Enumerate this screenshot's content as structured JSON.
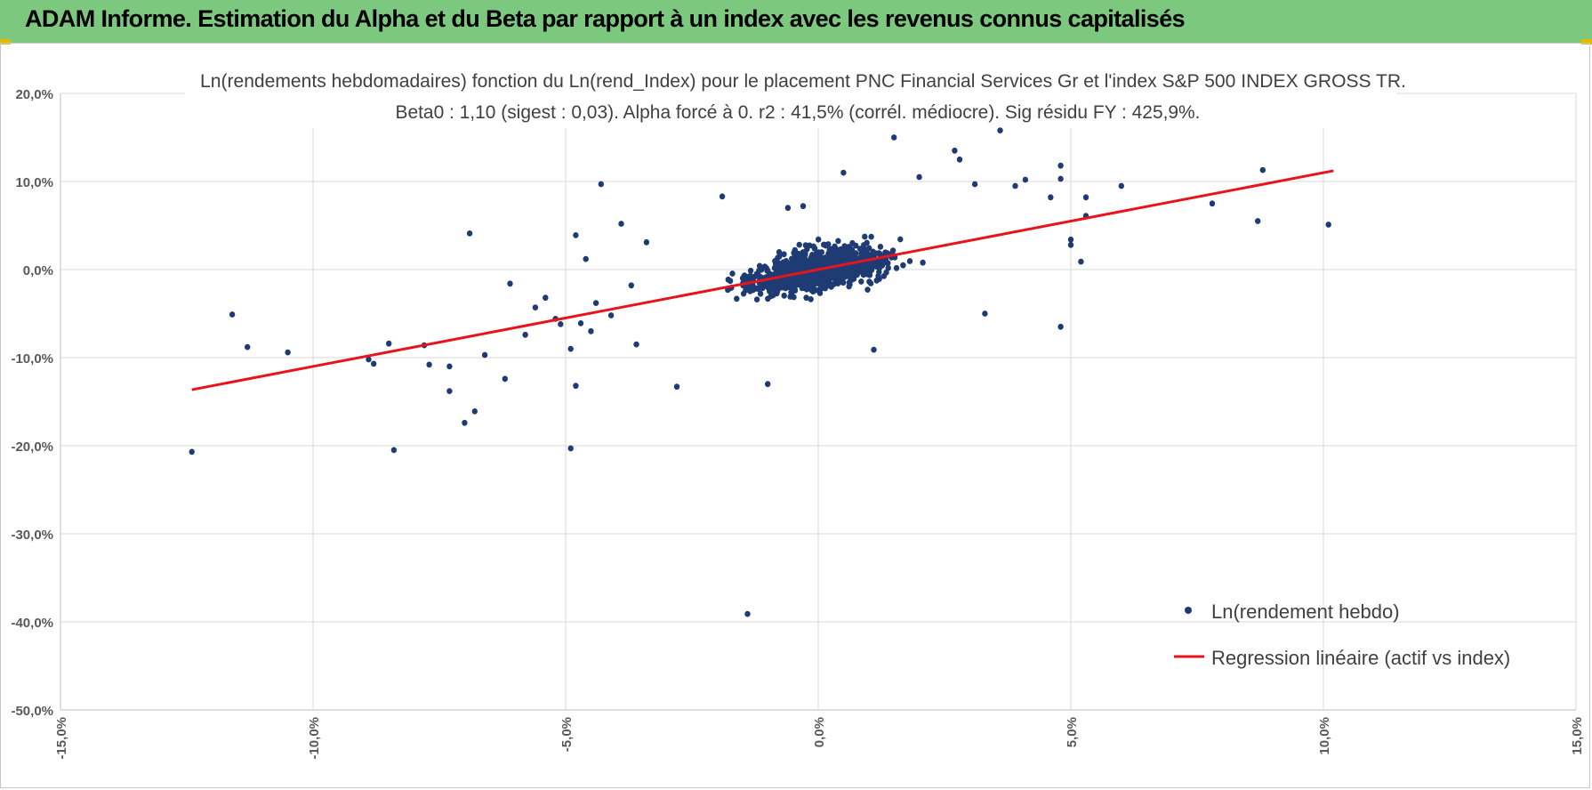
{
  "header": {
    "title": "ADAM Informe. Estimation du Alpha et du Beta par rapport à un index avec les revenus connus capitalisés",
    "background_color": "#7dc87f"
  },
  "chart_data": {
    "type": "scatter",
    "title": "Ln(rendements hebdomadaires) fonction du Ln(rend_Index) pour le placement PNC Financial Services Gr et l'index S&P 500 INDEX GROSS TR.",
    "subtitle": "Beta0 : 1,10 (sigest : 0,03). Alpha forcé à 0. r2 : 41,5% (corrél. médiocre). Sig résidu FY : 425,9%.",
    "xlabel": "",
    "ylabel": "",
    "xlim": [
      -0.15,
      0.15
    ],
    "ylim": [
      -0.5,
      0.2
    ],
    "x_ticks": [
      -0.15,
      -0.1,
      -0.05,
      0.0,
      0.05,
      0.1,
      0.15
    ],
    "x_tick_labels": [
      "-15,0%",
      "-10,0%",
      "-5,0%",
      "0,0%",
      "5,0%",
      "10,0%",
      "15,0%"
    ],
    "y_ticks": [
      0.2,
      0.1,
      0.0,
      -0.1,
      -0.2,
      -0.3,
      -0.4,
      -0.5
    ],
    "y_tick_labels": [
      "20,0%",
      "10,0%",
      "0,0%",
      "-10,0%",
      "-20,0%",
      "-30,0%",
      "-40,0%",
      "-50,0%"
    ],
    "grid": true,
    "legend_position": "bottom-right",
    "series": [
      {
        "name": "Ln(rendement hebdo)",
        "kind": "scatter",
        "color": "#1f3b73",
        "points": [
          [
            -0.124,
            -0.207
          ],
          [
            -0.116,
            -0.051
          ],
          [
            -0.113,
            -0.088
          ],
          [
            -0.105,
            -0.094
          ],
          [
            -0.089,
            -0.102
          ],
          [
            -0.088,
            -0.107
          ],
          [
            -0.085,
            -0.084
          ],
          [
            -0.084,
            -0.205
          ],
          [
            -0.078,
            -0.086
          ],
          [
            -0.077,
            -0.108
          ],
          [
            -0.073,
            -0.11
          ],
          [
            -0.073,
            -0.138
          ],
          [
            -0.07,
            -0.174
          ],
          [
            -0.069,
            0.041
          ],
          [
            -0.068,
            -0.161
          ],
          [
            -0.066,
            -0.097
          ],
          [
            -0.062,
            -0.124
          ],
          [
            -0.061,
            -0.016
          ],
          [
            -0.058,
            -0.074
          ],
          [
            -0.056,
            -0.043
          ],
          [
            -0.054,
            -0.032
          ],
          [
            -0.052,
            -0.056
          ],
          [
            -0.051,
            -0.062
          ],
          [
            -0.049,
            -0.09
          ],
          [
            -0.049,
            -0.203
          ],
          [
            -0.048,
            -0.132
          ],
          [
            -0.048,
            0.039
          ],
          [
            -0.047,
            -0.061
          ],
          [
            -0.046,
            0.012
          ],
          [
            -0.045,
            -0.07
          ],
          [
            -0.044,
            -0.038
          ],
          [
            -0.043,
            0.097
          ],
          [
            -0.041,
            -0.052
          ],
          [
            -0.039,
            0.052
          ],
          [
            -0.037,
            -0.018
          ],
          [
            -0.036,
            -0.085
          ],
          [
            -0.034,
            0.031
          ],
          [
            -0.028,
            -0.133
          ],
          [
            -0.019,
            0.083
          ],
          [
            -0.01,
            -0.13
          ],
          [
            -0.014,
            -0.391
          ],
          [
            -0.006,
            0.07
          ],
          [
            -0.003,
            0.072
          ],
          [
            0.005,
            0.11
          ],
          [
            0.011,
            -0.091
          ],
          [
            0.015,
            0.15
          ],
          [
            0.02,
            0.105
          ],
          [
            0.027,
            0.135
          ],
          [
            0.028,
            0.125
          ],
          [
            0.036,
            0.158
          ],
          [
            0.031,
            0.097
          ],
          [
            0.033,
            -0.05
          ],
          [
            0.039,
            0.095
          ],
          [
            0.041,
            0.102
          ],
          [
            0.046,
            0.082
          ],
          [
            0.048,
            0.118
          ],
          [
            0.048,
            0.103
          ],
          [
            0.048,
            -0.065
          ],
          [
            0.05,
            0.034
          ],
          [
            0.05,
            0.028
          ],
          [
            0.052,
            0.009
          ],
          [
            0.053,
            0.082
          ],
          [
            0.053,
            0.061
          ],
          [
            0.06,
            0.095
          ],
          [
            0.078,
            0.075
          ],
          [
            0.087,
            0.055
          ],
          [
            0.088,
            0.113
          ],
          [
            0.101,
            0.051
          ]
        ],
        "cluster": {
          "center": [
            0.0,
            0.0
          ],
          "count": 1100,
          "beta": 1.1
        }
      },
      {
        "name": "Regression linéaire (actif vs index)",
        "kind": "line",
        "color": "#e8141b",
        "x": [
          -0.124,
          0.102
        ],
        "y": [
          -0.1364,
          0.1122
        ]
      }
    ]
  }
}
